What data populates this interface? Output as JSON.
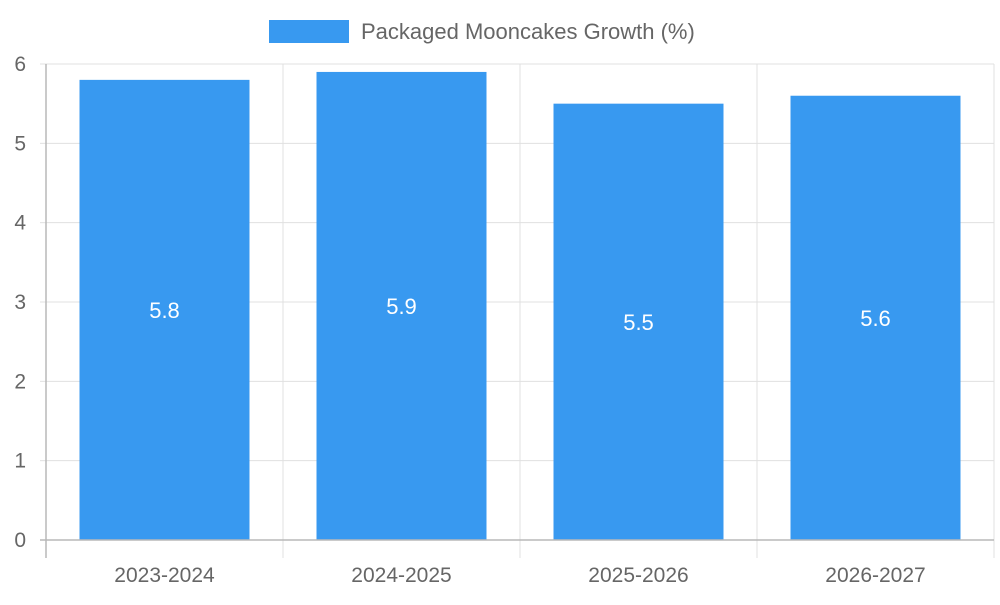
{
  "chart_data": {
    "type": "bar",
    "categories": [
      "2023-2024",
      "2024-2025",
      "2025-2026",
      "2026-2027"
    ],
    "series": [
      {
        "name": "Packaged Mooncakes Growth (%)",
        "values": [
          5.8,
          5.9,
          5.5,
          5.6
        ]
      }
    ],
    "data_labels": [
      "5.8",
      "5.9",
      "5.5",
      "5.6"
    ],
    "ylim": [
      0,
      6
    ],
    "yticks": [
      "0",
      "1",
      "2",
      "3",
      "4",
      "5",
      "6"
    ],
    "grid": true,
    "legend_position": "top-center",
    "title": "",
    "xlabel": "",
    "ylabel": ""
  },
  "colors": {
    "bar": "#3899f0",
    "grid": "#e0e0e0",
    "axis": "#b8b8b8",
    "text": "#666666",
    "label_text": "#ffffff"
  }
}
